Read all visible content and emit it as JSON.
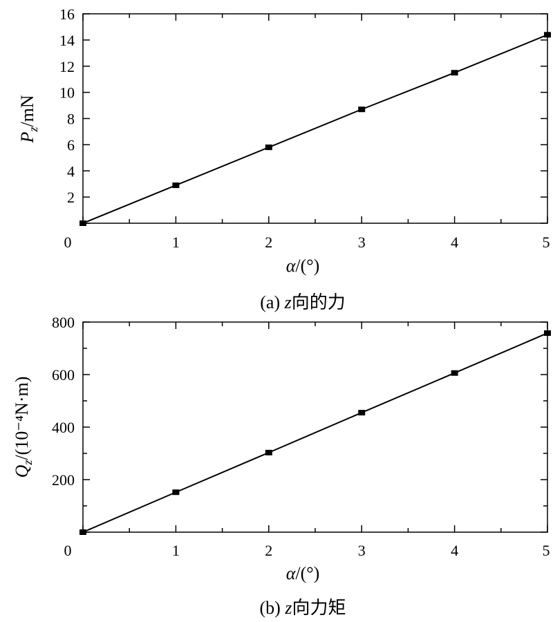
{
  "chart_data": [
    {
      "type": "line",
      "caption": "(a) z向的力",
      "caption_prefix": "(a) ",
      "caption_var": "z",
      "caption_rest": "向的力",
      "xlabel_var": "α",
      "xlabel_unit": "/(°)",
      "ylabel_var": "P",
      "ylabel_sub": "z",
      "ylabel_unit": "/mN",
      "xlim": [
        0,
        5
      ],
      "ylim": [
        0,
        16
      ],
      "x_ticks": [
        "0",
        "1",
        "2",
        "3",
        "4",
        "5"
      ],
      "y_ticks": [
        "2",
        "4",
        "6",
        "8",
        "10",
        "12",
        "14",
        "16"
      ],
      "grid": false,
      "marker": "square",
      "color": "#000000",
      "x": [
        0,
        1,
        2,
        3,
        4,
        5
      ],
      "y": [
        0,
        2.9,
        5.8,
        8.7,
        11.5,
        14.4
      ]
    },
    {
      "type": "line",
      "caption": "(b) z向力矩",
      "caption_prefix": "(b) ",
      "caption_var": "z",
      "caption_rest": "向力矩",
      "xlabel_var": "α",
      "xlabel_unit": "/(°)",
      "ylabel_var": "Q",
      "ylabel_sub": "z",
      "ylabel_unit": "/(10⁻⁴N·m)",
      "xlim": [
        0,
        5
      ],
      "ylim": [
        0,
        800
      ],
      "x_ticks": [
        "0",
        "1",
        "2",
        "3",
        "4",
        "5"
      ],
      "y_ticks": [
        "200",
        "400",
        "600",
        "800"
      ],
      "grid": false,
      "marker": "square",
      "color": "#000000",
      "x": [
        0,
        1,
        2,
        3,
        4,
        5
      ],
      "y": [
        0,
        152,
        303,
        455,
        606,
        758
      ]
    }
  ]
}
